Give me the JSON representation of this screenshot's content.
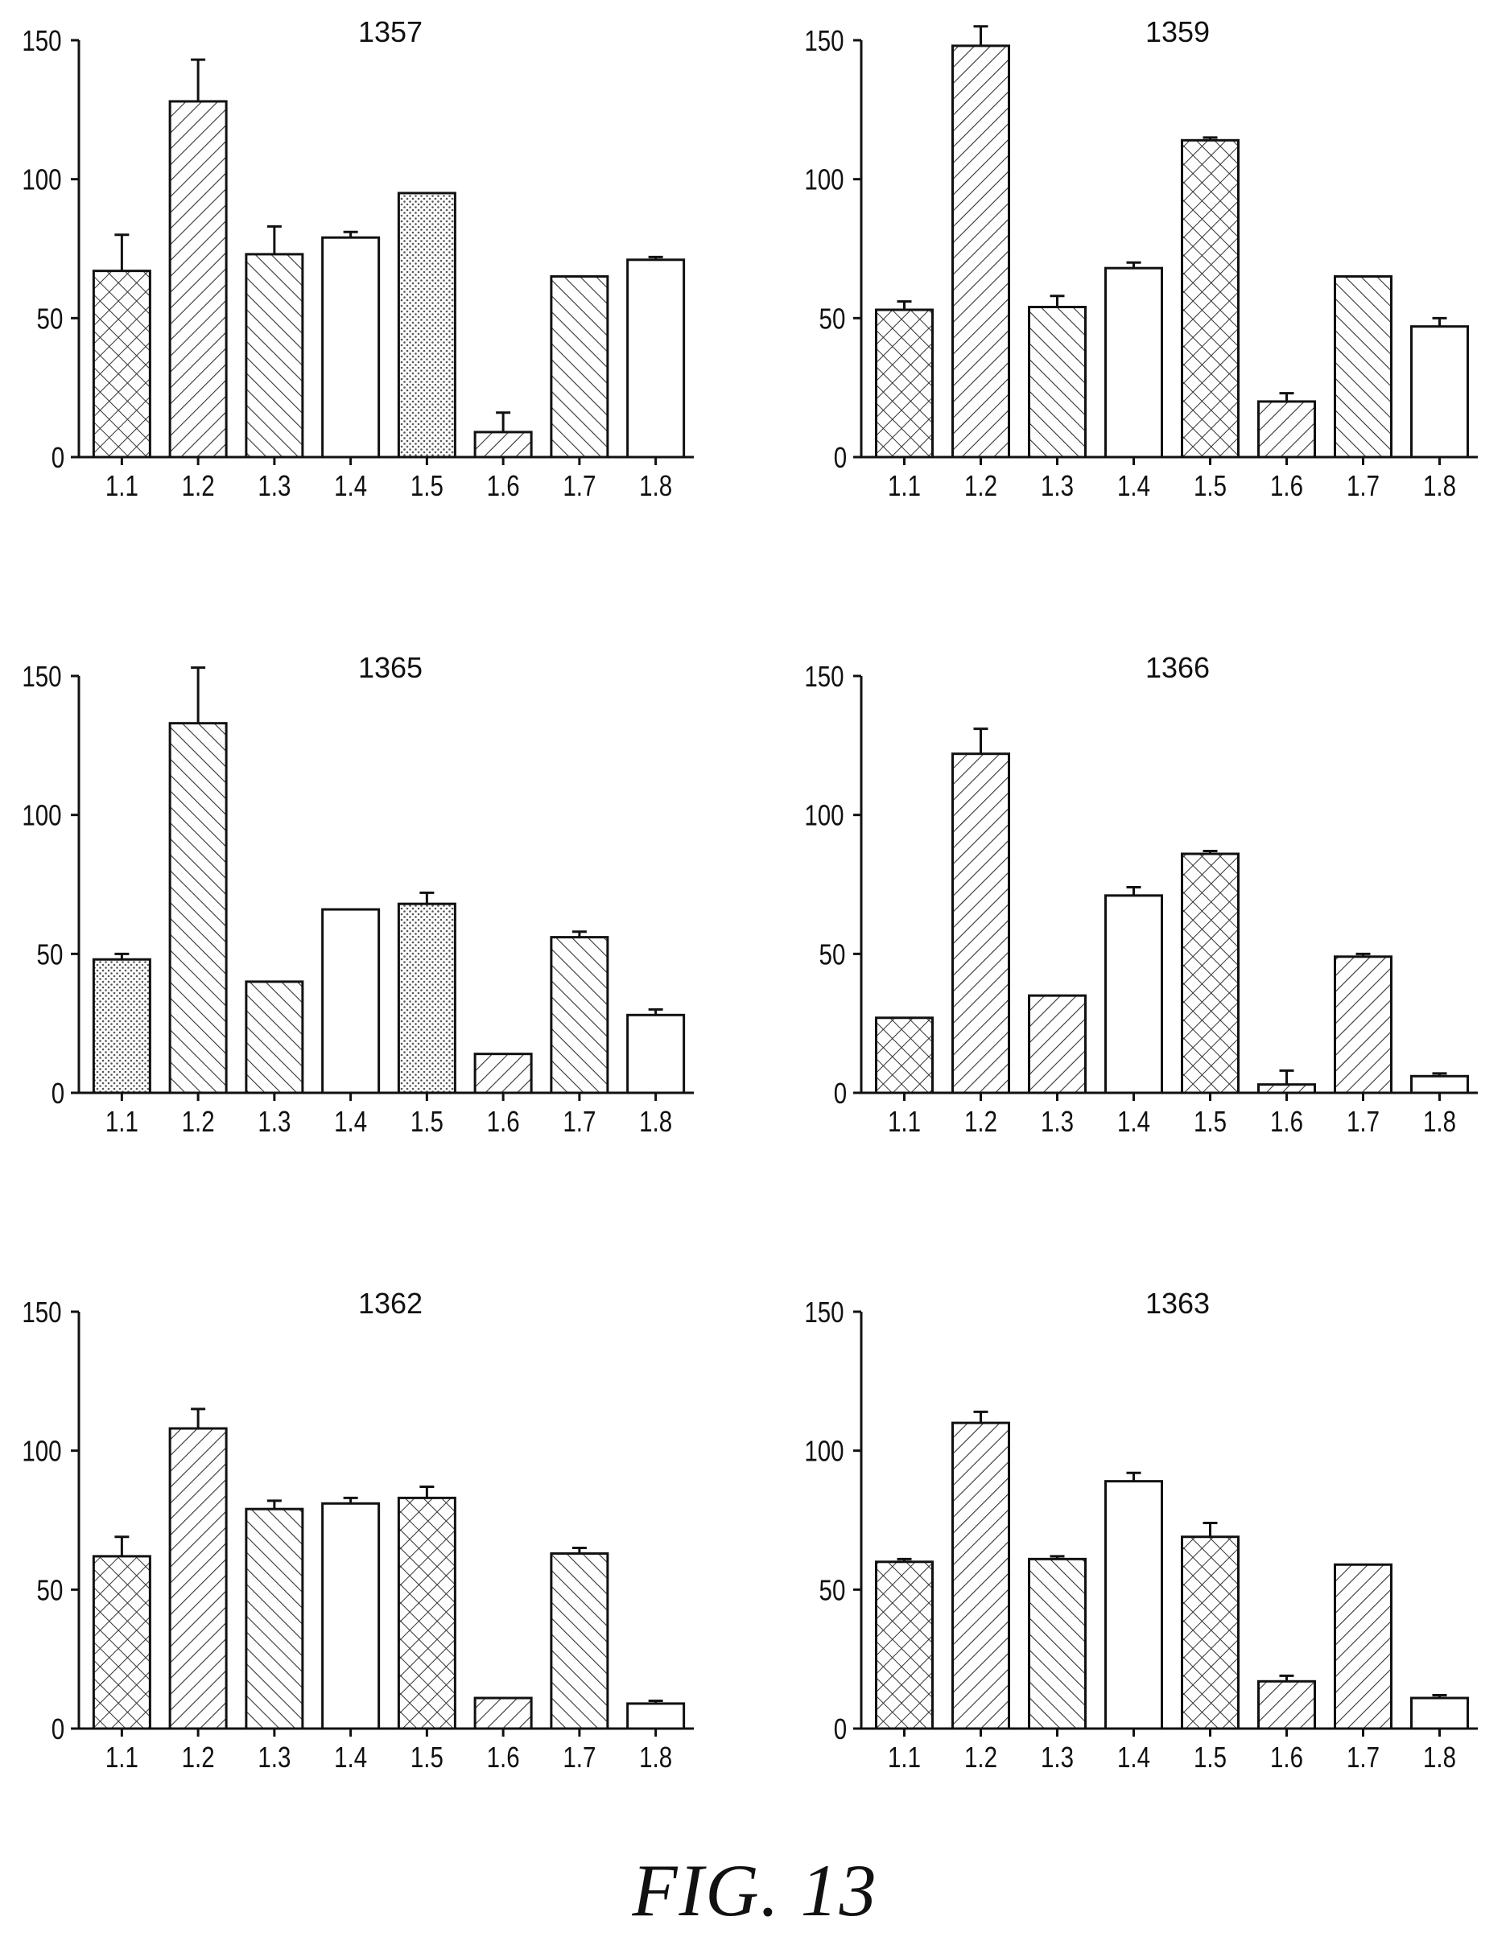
{
  "figure": {
    "caption": "FIG. 13"
  },
  "chart_data": [
    {
      "type": "bar",
      "title": "1357",
      "categories": [
        "1.1",
        "1.2",
        "1.3",
        "1.4",
        "1.5",
        "1.6",
        "1.7",
        "1.8"
      ],
      "values": [
        67,
        128,
        73,
        79,
        95,
        9,
        65,
        71
      ],
      "errors": [
        13,
        15,
        10,
        2,
        0,
        7,
        0,
        1
      ],
      "yticks": [
        0,
        50,
        100,
        150
      ],
      "ylim": [
        0,
        150
      ],
      "patterns": [
        "cross",
        "fwd",
        "back",
        "none",
        "dots",
        "fwd",
        "back",
        "none"
      ]
    },
    {
      "type": "bar",
      "title": "1359",
      "categories": [
        "1.1",
        "1.2",
        "1.3",
        "1.4",
        "1.5",
        "1.6",
        "1.7",
        "1.8"
      ],
      "values": [
        53,
        148,
        54,
        68,
        114,
        20,
        65,
        47
      ],
      "errors": [
        3,
        7,
        4,
        2,
        1,
        3,
        0,
        3
      ],
      "yticks": [
        0,
        50,
        100,
        150
      ],
      "ylim": [
        0,
        150
      ],
      "patterns": [
        "cross",
        "fwd",
        "back",
        "none",
        "cross",
        "fwd",
        "back",
        "none"
      ]
    },
    {
      "type": "bar",
      "title": "1365",
      "categories": [
        "1.1",
        "1.2",
        "1.3",
        "1.4",
        "1.5",
        "1.6",
        "1.7",
        "1.8"
      ],
      "values": [
        48,
        133,
        40,
        66,
        68,
        14,
        56,
        28
      ],
      "errors": [
        2,
        20,
        0,
        0,
        4,
        0,
        2,
        2
      ],
      "yticks": [
        0,
        50,
        100,
        150
      ],
      "ylim": [
        0,
        150
      ],
      "patterns": [
        "dots",
        "back",
        "back",
        "none",
        "dots",
        "fwd",
        "back",
        "none"
      ]
    },
    {
      "type": "bar",
      "title": "1366",
      "categories": [
        "1.1",
        "1.2",
        "1.3",
        "1.4",
        "1.5",
        "1.6",
        "1.7",
        "1.8"
      ],
      "values": [
        27,
        122,
        35,
        71,
        86,
        3,
        49,
        6
      ],
      "errors": [
        0,
        9,
        0,
        3,
        1,
        5,
        1,
        1
      ],
      "yticks": [
        0,
        50,
        100,
        150
      ],
      "ylim": [
        0,
        150
      ],
      "patterns": [
        "cross",
        "fwd",
        "fwd",
        "none",
        "cross",
        "fwd",
        "fwd",
        "none"
      ]
    },
    {
      "type": "bar",
      "title": "1362",
      "categories": [
        "1.1",
        "1.2",
        "1.3",
        "1.4",
        "1.5",
        "1.6",
        "1.7",
        "1.8"
      ],
      "values": [
        62,
        108,
        79,
        81,
        83,
        11,
        63,
        9
      ],
      "errors": [
        7,
        7,
        3,
        2,
        4,
        0,
        2,
        1
      ],
      "yticks": [
        0,
        50,
        100,
        150
      ],
      "ylim": [
        0,
        150
      ],
      "patterns": [
        "cross",
        "fwd",
        "back",
        "none",
        "cross",
        "fwd",
        "back",
        "none"
      ]
    },
    {
      "type": "bar",
      "title": "1363",
      "categories": [
        "1.1",
        "1.2",
        "1.3",
        "1.4",
        "1.5",
        "1.6",
        "1.7",
        "1.8"
      ],
      "values": [
        60,
        110,
        61,
        89,
        69,
        17,
        59,
        11
      ],
      "errors": [
        1,
        4,
        1,
        3,
        5,
        2,
        0,
        1
      ],
      "yticks": [
        0,
        50,
        100,
        150
      ],
      "ylim": [
        0,
        150
      ],
      "patterns": [
        "cross",
        "fwd",
        "back",
        "none",
        "cross",
        "fwd",
        "fwd",
        "none"
      ]
    }
  ]
}
